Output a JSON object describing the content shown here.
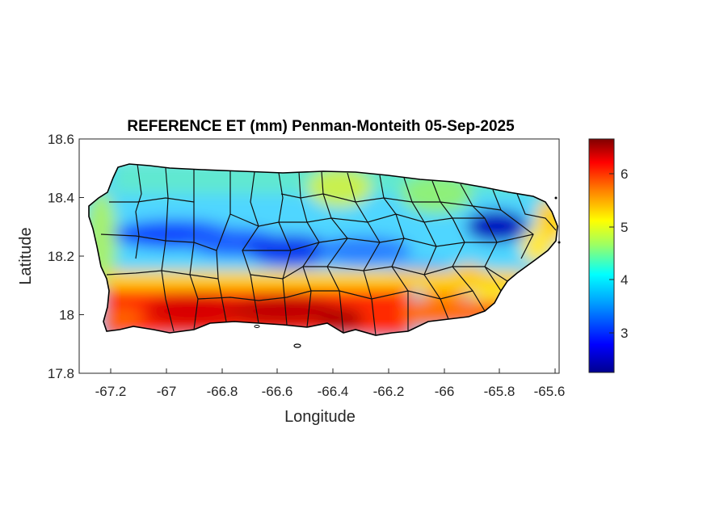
{
  "map": {
    "title": "REFERENCE ET (mm) Penman-Monteith 05-Sep-2025",
    "xlabel": "Longitude",
    "ylabel": "Latitude",
    "x_ticks": [
      "-67.2",
      "-67",
      "-66.8",
      "-66.6",
      "-66.4",
      "-66.2",
      "-66",
      "-65.8",
      "-65.6"
    ],
    "y_ticks": [
      "18.6",
      "18.4",
      "18.2",
      "18",
      "17.8"
    ],
    "xlim": [
      -67.3,
      -65.6
    ],
    "ylim": [
      17.8,
      18.6
    ],
    "region": "Puerto Rico",
    "boundaries": "municipality outlines",
    "colormap": "jet"
  },
  "colorbar": {
    "ticks": [
      "6",
      "5",
      "4",
      "3"
    ],
    "min": 2.25,
    "max": 6.65,
    "colors": [
      "#00008f",
      "#0000ff",
      "#00a0ff",
      "#00ffff",
      "#a0ff60",
      "#ffff00",
      "#ff8000",
      "#ff0000",
      "#800000"
    ]
  },
  "chart_data": {
    "type": "heatmap",
    "title": "REFERENCE ET (mm) Penman-Monteith 05-Sep-2025",
    "xlabel": "Longitude",
    "ylabel": "Latitude",
    "xlim": [
      -67.3,
      -65.6
    ],
    "ylim": [
      17.8,
      18.6
    ],
    "color_range": [
      2.25,
      6.65
    ],
    "pattern": {
      "south_coast": 6.3,
      "central_mountains": 3.2,
      "north_coast": 4.2,
      "northeast_el_yunque": 2.6,
      "east_coast": 5.0,
      "west_coast": 4.0
    }
  }
}
